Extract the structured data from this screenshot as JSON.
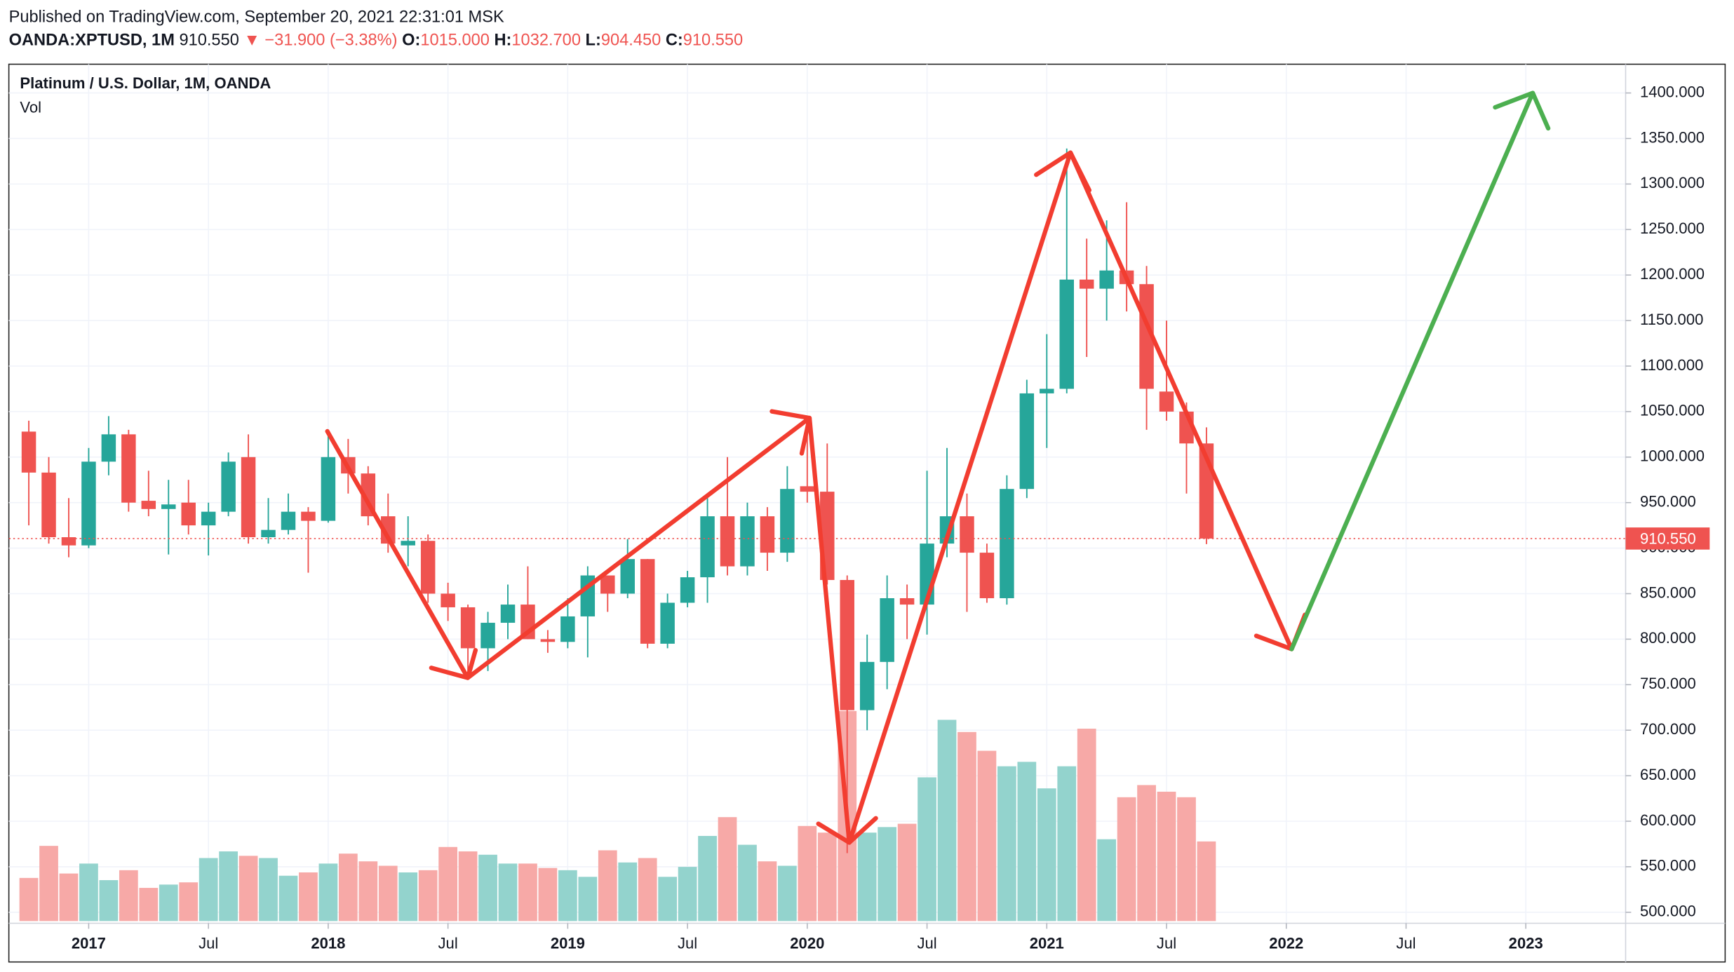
{
  "header": {
    "published": "Published on TradingView.com, September 20, 2021 22:31:01 MSK",
    "symbol": "OANDA:XPTUSD, 1M",
    "last": "910.550",
    "change": "▼ −31.900 (−3.38%)",
    "o_label": "O:",
    "o": "1015.000",
    "h_label": "H:",
    "h": "1032.700",
    "l_label": "L:",
    "l": "904.450",
    "c_label": "C:",
    "c": "910.550"
  },
  "chart_data": {
    "type": "candlestick",
    "title": "Platinum / U.S. Dollar, 1M, OANDA",
    "volume_label": "Vol",
    "x": [
      "2016-10",
      "2016-11",
      "2016-12",
      "2017-01",
      "2017-02",
      "2017-03",
      "2017-04",
      "2017-05",
      "2017-06",
      "2017-07",
      "2017-08",
      "2017-09",
      "2017-10",
      "2017-11",
      "2017-12",
      "2018-01",
      "2018-02",
      "2018-03",
      "2018-04",
      "2018-05",
      "2018-06",
      "2018-07",
      "2018-08",
      "2018-09",
      "2018-10",
      "2018-11",
      "2018-12",
      "2019-01",
      "2019-02",
      "2019-03",
      "2019-04",
      "2019-05",
      "2019-06",
      "2019-07",
      "2019-08",
      "2019-09",
      "2019-10",
      "2019-11",
      "2019-12",
      "2020-01",
      "2020-02",
      "2020-03",
      "2020-04",
      "2020-05",
      "2020-06",
      "2020-07",
      "2020-08",
      "2020-09",
      "2020-10",
      "2020-11",
      "2020-12",
      "2021-01",
      "2021-02",
      "2021-03",
      "2021-04",
      "2021-05",
      "2021-06",
      "2021-07",
      "2021-08",
      "2021-09"
    ],
    "open": [
      1028,
      983,
      912,
      903,
      995,
      1025,
      952,
      943,
      950,
      925,
      940,
      1000,
      912,
      920,
      940,
      930,
      1000,
      982,
      935,
      903,
      908,
      850,
      835,
      790,
      818,
      838,
      800,
      797,
      825,
      870,
      850,
      888,
      795,
      840,
      868,
      935,
      880,
      935,
      895,
      968,
      962,
      865,
      722,
      775,
      845,
      838,
      905,
      935,
      895,
      845,
      965,
      1070,
      1075,
      1195,
      1185,
      1205,
      1190,
      1072,
      1050,
      1015
    ],
    "high": [
      1040,
      1000,
      955,
      1010,
      1045,
      1030,
      985,
      975,
      975,
      950,
      1005,
      1025,
      955,
      960,
      945,
      1030,
      1020,
      990,
      960,
      935,
      915,
      862,
      838,
      830,
      860,
      880,
      810,
      845,
      880,
      870,
      910,
      888,
      850,
      875,
      955,
      1000,
      950,
      945,
      990,
      1040,
      1015,
      870,
      805,
      870,
      860,
      985,
      1010,
      960,
      905,
      980,
      1085,
      1135,
      1339,
      1240,
      1260,
      1280,
      1210,
      1150,
      1060,
      1032.7
    ],
    "low": [
      925,
      905,
      890,
      900,
      980,
      940,
      935,
      893,
      915,
      892,
      935,
      905,
      905,
      915,
      873,
      928,
      960,
      925,
      895,
      880,
      840,
      820,
      760,
      765,
      800,
      800,
      785,
      790,
      780,
      830,
      845,
      790,
      790,
      835,
      840,
      870,
      870,
      875,
      885,
      950,
      860,
      565,
      700,
      745,
      800,
      805,
      890,
      830,
      840,
      838,
      955,
      1010,
      1070,
      1110,
      1150,
      1160,
      1030,
      1040,
      960,
      904.45
    ],
    "close": [
      983,
      912,
      903,
      995,
      1025,
      950,
      943,
      948,
      925,
      940,
      995,
      912,
      920,
      940,
      930,
      1000,
      982,
      935,
      905,
      908,
      850,
      835,
      790,
      818,
      838,
      800,
      797,
      825,
      870,
      850,
      888,
      795,
      840,
      868,
      935,
      880,
      935,
      895,
      965,
      962,
      865,
      722,
      775,
      845,
      838,
      905,
      935,
      895,
      845,
      965,
      1070,
      1075,
      1195,
      1185,
      1205,
      1190,
      1075,
      1050,
      1015,
      910.55
    ],
    "volume": [
      39,
      68,
      43,
      52,
      37,
      46,
      30,
      33,
      35,
      57,
      63,
      59,
      57,
      41,
      44,
      52,
      61,
      54,
      50,
      44,
      46,
      67,
      63,
      60,
      52,
      52,
      48,
      46,
      40,
      64,
      53,
      57,
      40,
      49,
      77,
      94,
      69,
      54,
      50,
      86,
      80,
      190,
      80,
      85,
      88,
      130,
      182,
      171,
      154,
      140,
      144,
      120,
      140,
      174,
      74,
      112,
      123,
      117,
      112,
      72
    ],
    "up_color": "#26a69a",
    "down_color": "#ef5350",
    "volume_up_color": "#93d3cd",
    "volume_down_color": "#f7a9a7",
    "xlim": [
      "2016-09",
      "2023-06"
    ],
    "xticks": [
      {
        "value": "2017-01",
        "label": "2017"
      },
      {
        "value": "2017-07",
        "label": "Jul"
      },
      {
        "value": "2018-01",
        "label": "2018"
      },
      {
        "value": "2018-07",
        "label": "Jul"
      },
      {
        "value": "2019-01",
        "label": "2019"
      },
      {
        "value": "2019-07",
        "label": "Jul"
      },
      {
        "value": "2020-01",
        "label": "2020"
      },
      {
        "value": "2020-07",
        "label": "Jul"
      },
      {
        "value": "2021-01",
        "label": "2021"
      },
      {
        "value": "2021-07",
        "label": "Jul"
      },
      {
        "value": "2022-01",
        "label": "2022"
      },
      {
        "value": "2022-07",
        "label": "Jul"
      },
      {
        "value": "2023-01",
        "label": "2023"
      }
    ],
    "ylim": [
      487.9,
      1431.6
    ],
    "yticks": [
      {
        "value": 500,
        "label": "500.000"
      },
      {
        "value": 550,
        "label": "550.000"
      },
      {
        "value": 600,
        "label": "600.000"
      },
      {
        "value": 650,
        "label": "650.000"
      },
      {
        "value": 700,
        "label": "700.000"
      },
      {
        "value": 750,
        "label": "750.000"
      },
      {
        "value": 800,
        "label": "800.000"
      },
      {
        "value": 850,
        "label": "850.000"
      },
      {
        "value": 900,
        "label": "900.000"
      },
      {
        "value": 950,
        "label": "950.000"
      },
      {
        "value": 1000,
        "label": "1000.000"
      },
      {
        "value": 1050,
        "label": "1050.000"
      },
      {
        "value": 1100,
        "label": "1100.000"
      },
      {
        "value": 1150,
        "label": "1150.000"
      },
      {
        "value": 1200,
        "label": "1200.000"
      },
      {
        "value": 1250,
        "label": "1250.000"
      },
      {
        "value": 1300,
        "label": "1300.000"
      },
      {
        "value": 1350,
        "label": "1350.000"
      },
      {
        "value": 1400,
        "label": "1400.000"
      }
    ],
    "last_price": {
      "value": 910.55,
      "label": "910.550"
    },
    "grid": true
  }
}
